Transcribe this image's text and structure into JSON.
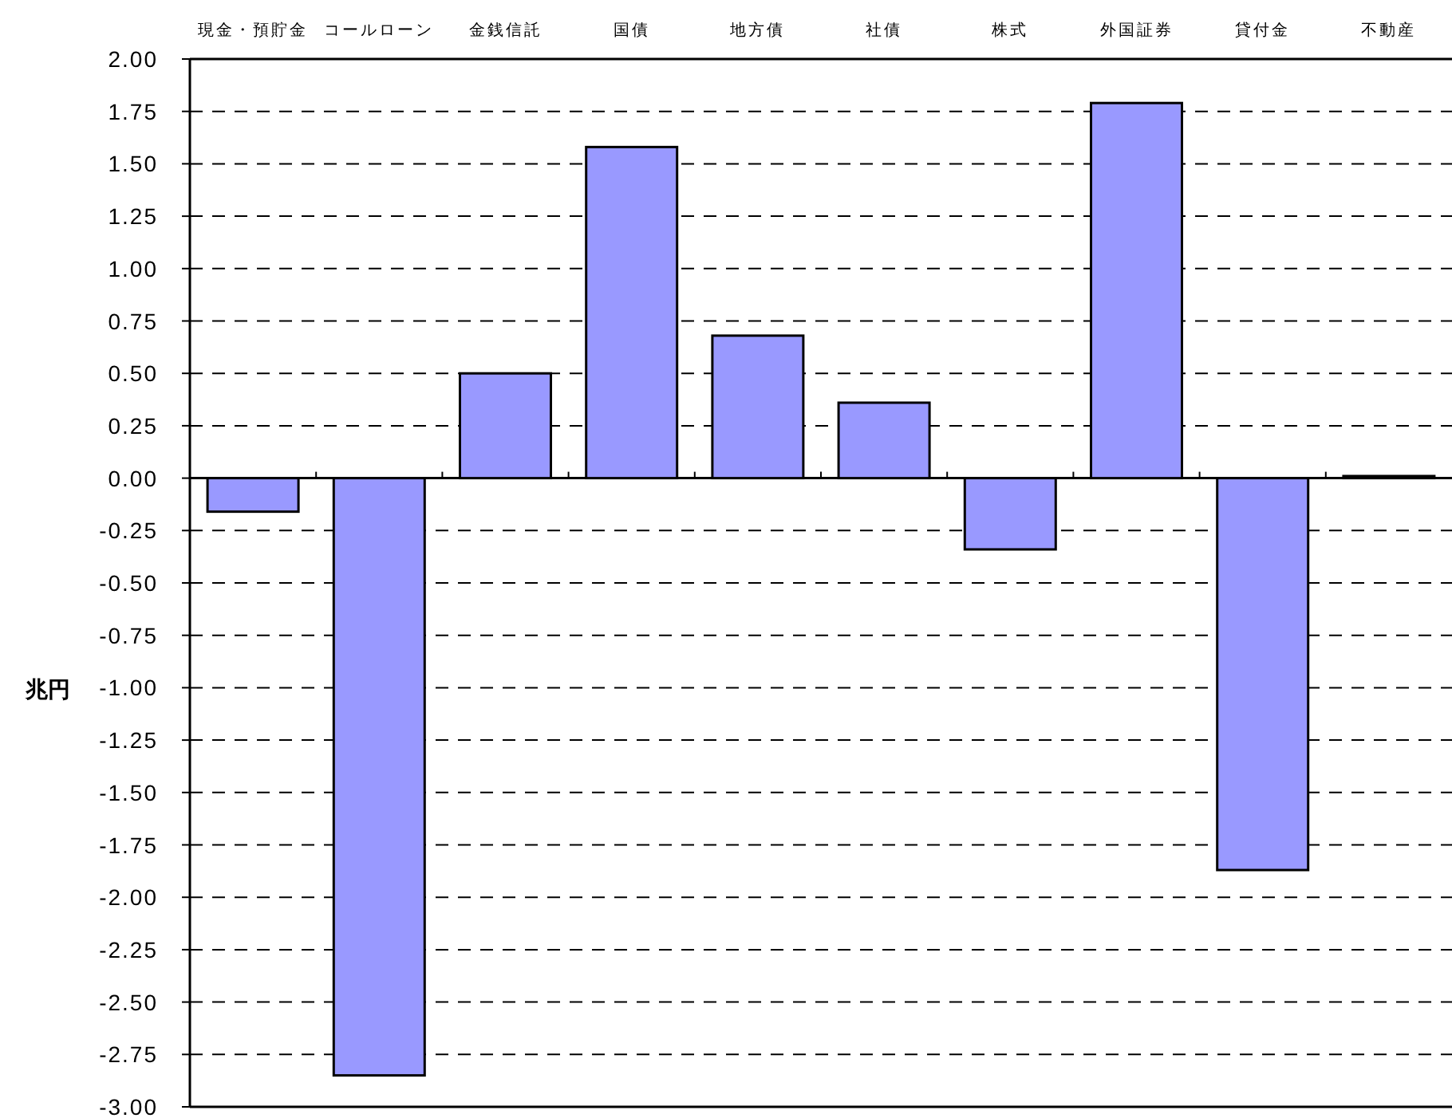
{
  "chart_data": {
    "type": "bar",
    "ylabel": "兆円",
    "categories": [
      "現金・預貯金",
      "コールローン",
      "金銭信託",
      "国債",
      "地方債",
      "社債",
      "株式",
      "外国証券",
      "貸付金",
      "不動産"
    ],
    "series": [
      {
        "color": "#9999ff",
        "values": [
          -0.16,
          -2.85,
          0.5,
          1.58,
          0.68,
          0.36,
          -0.34,
          1.79,
          -1.87,
          0.01
        ]
      }
    ],
    "ylim": [
      -3,
      2
    ],
    "yticks": [
      {
        "value": 2,
        "label": "2.00"
      },
      {
        "value": 1.75,
        "label": "1.75"
      },
      {
        "value": 1.5,
        "label": "1.50"
      },
      {
        "value": 1.25,
        "label": "1.25"
      },
      {
        "value": 1,
        "label": "1.00"
      },
      {
        "value": 0.75,
        "label": "0.75"
      },
      {
        "value": 0.5,
        "label": "0.50"
      },
      {
        "value": 0.25,
        "label": "0.25"
      },
      {
        "value": 0,
        "label": "0.00"
      },
      {
        "value": -0.25,
        "label": "-0.25"
      },
      {
        "value": -0.5,
        "label": "-0.50"
      },
      {
        "value": -0.75,
        "label": "-0.75"
      },
      {
        "value": -1,
        "label": "-1.00"
      },
      {
        "value": -1.25,
        "label": "-1.25"
      },
      {
        "value": -1.5,
        "label": "-1.50"
      },
      {
        "value": -1.75,
        "label": "-1.75"
      },
      {
        "value": -2,
        "label": "-2.00"
      },
      {
        "value": -2.25,
        "label": "-2.25"
      },
      {
        "value": -2.5,
        "label": "-2.50"
      },
      {
        "value": -2.75,
        "label": "-2.75"
      },
      {
        "value": -3,
        "label": "-3.00"
      }
    ],
    "grid": "y",
    "line_style": "dashed"
  }
}
